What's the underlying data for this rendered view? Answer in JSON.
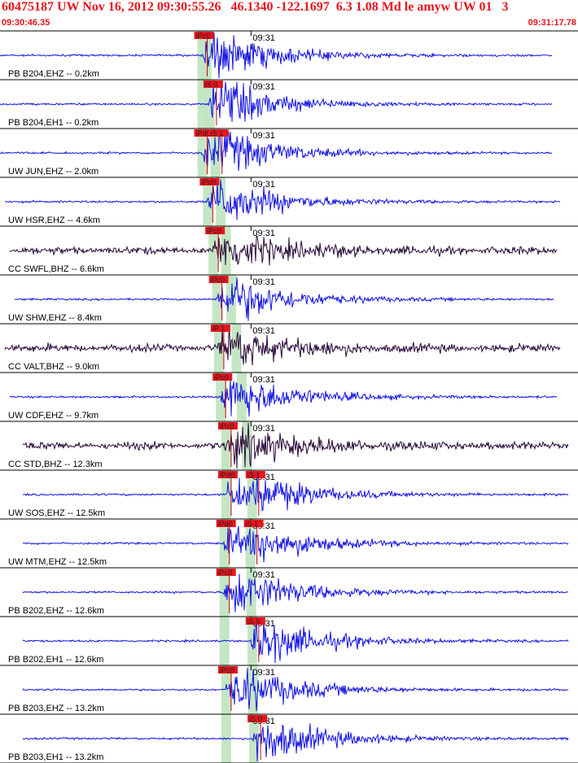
{
  "header": {
    "title": "60475187 UW Nov 16, 2012 09:30:55.26   46.1340 -122.1697  6.3 1.08 Md le amyw UW 01   3",
    "time_start": "09:30:46.35",
    "time_end": "09:31:17.78"
  },
  "colors": {
    "header": "#e8141e",
    "trace_blue": "#1414e6",
    "trace_dark": "#2a0a3a",
    "pick_bg": "#e8141e",
    "pick_line": "#c80000",
    "band": "#bfe3bf"
  },
  "chart_data": {
    "type": "line",
    "title": "",
    "time_axis": {
      "start": "09:30:46.35",
      "end": "09:31:17.78",
      "minute_mark": "09:31"
    },
    "traces": [
      {
        "label": "PB B204,EHZ -- 0.2km",
        "color": "blue",
        "picks": [
          {
            "label": "iPc0",
            "time": "09:30:57.0"
          }
        ]
      },
      {
        "label": "PB B204,EH1 -- 0.2km",
        "color": "blue",
        "picks": [
          {
            "label": "iS 0",
            "time": "09:30:57.5"
          }
        ]
      },
      {
        "label": "UW JUN,EHZ -- 2.0km",
        "color": "blue",
        "picks": [
          {
            "label": "iPd0",
            "time": "09:30:57.0"
          },
          {
            "label": "iS 1",
            "time": "09:30:57.8"
          }
        ]
      },
      {
        "label": "UW HSR,EHZ -- 4.6km",
        "color": "blue",
        "picks": [
          {
            "label": "iPc0",
            "time": "09:30:57.3"
          }
        ]
      },
      {
        "label": "CC SWFL,BHZ -- 6.6km",
        "color": "dark",
        "picks": [
          {
            "label": "iPc0",
            "time": "09:30:57.6"
          }
        ]
      },
      {
        "label": "UW SHW,EHZ -- 8.4km",
        "color": "blue",
        "picks": [
          {
            "label": "iPc0",
            "time": "09:30:57.8"
          }
        ]
      },
      {
        "label": "CC VALT,BHZ -- 9.0km",
        "color": "dark",
        "picks": [
          {
            "label": "iP 1",
            "time": "09:30:57.9"
          }
        ]
      },
      {
        "label": "UW CDF,EHZ -- 9.7km",
        "color": "blue",
        "picks": [
          {
            "label": "iPc0",
            "time": "09:30:58.0"
          }
        ]
      },
      {
        "label": "CC STD,BHZ -- 12.3km",
        "color": "dark",
        "picks": [
          {
            "label": "iPc0",
            "time": "09:30:58.3"
          }
        ]
      },
      {
        "label": "UW SOS,EHZ -- 12.5km",
        "color": "blue",
        "picks": [
          {
            "label": "iPd0",
            "time": "09:30:58.3"
          },
          {
            "label": "iS 1",
            "time": "09:30:59.8"
          }
        ]
      },
      {
        "label": "UW MTM,EHZ -- 12.5km",
        "color": "blue",
        "picks": [
          {
            "label": "iPd0",
            "time": "09:30:58.2"
          },
          {
            "label": "iS 1",
            "time": "09:30:59.7"
          }
        ]
      },
      {
        "label": "PB B202,EHZ -- 12.6km",
        "color": "blue",
        "picks": [
          {
            "label": "iPc0",
            "time": "09:30:58.2"
          }
        ]
      },
      {
        "label": "PB B202,EH1 -- 12.6km",
        "color": "blue",
        "picks": [
          {
            "label": "iS 0",
            "time": "09:30:59.8"
          }
        ]
      },
      {
        "label": "PB B203,EHZ -- 13.2km",
        "color": "blue",
        "picks": [
          {
            "label": "iPc0",
            "time": "09:30:58.3"
          }
        ]
      },
      {
        "label": "PB B203,EH1 -- 13.2km",
        "color": "blue",
        "picks": [
          {
            "label": "iS 0",
            "time": "09:30:59.9"
          }
        ]
      }
    ]
  }
}
